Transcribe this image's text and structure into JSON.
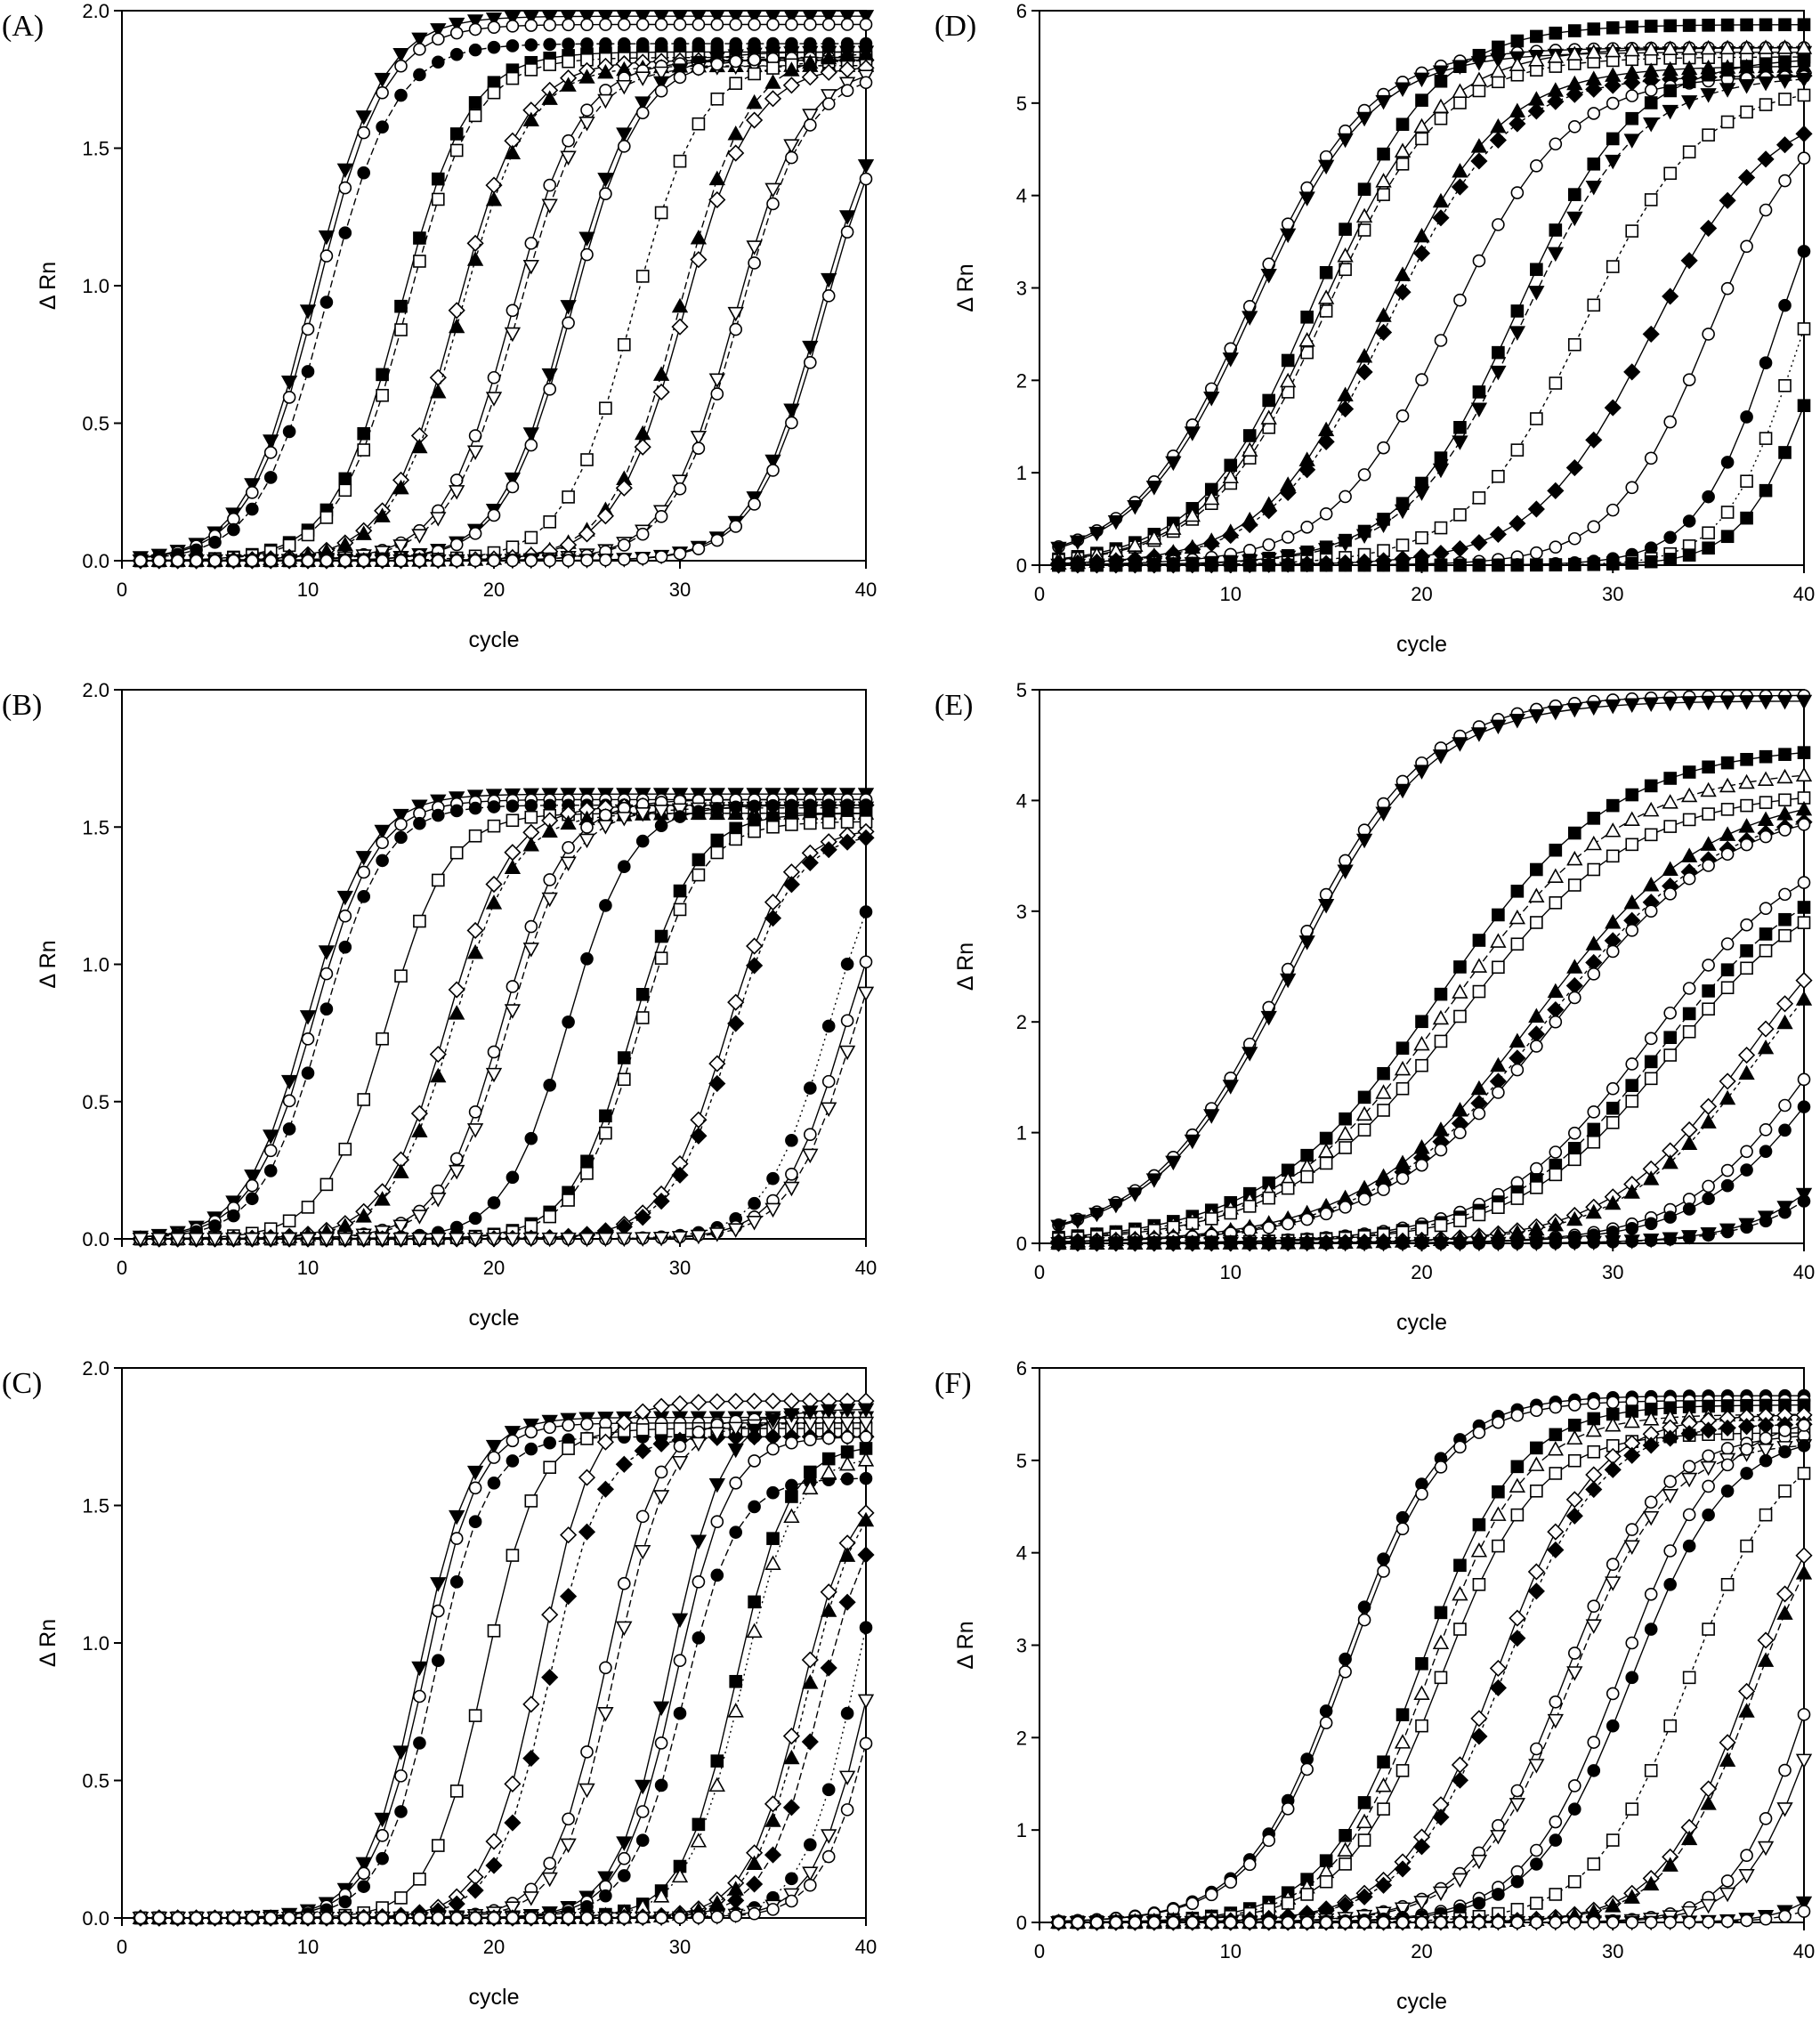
{
  "chart_data": [
    {
      "panel": "(A)",
      "type": "line",
      "xlabel": "cycle",
      "ylabel": "Δ Rn",
      "xlim": [
        0,
        40
      ],
      "ylim": [
        0,
        2.0
      ],
      "xticks": [
        0,
        10,
        20,
        30,
        40
      ],
      "yticks": [
        0.0,
        0.5,
        1.0,
        1.5,
        2.0
      ],
      "ytick_labels": [
        "0.0",
        "0.5",
        "1.0",
        "1.5",
        "2.0"
      ],
      "grid": false,
      "series": [
        {
          "marker": "triangle-down-filled",
          "dash": "",
          "ct": 10.3,
          "plateau": 1.98,
          "k": 0.55
        },
        {
          "marker": "circle-open",
          "dash": "",
          "ct": 10.5,
          "plateau": 1.95,
          "k": 0.55
        },
        {
          "marker": "circle-filled",
          "dash": "8 4",
          "ct": 11.0,
          "plateau": 1.88,
          "k": 0.55
        },
        {
          "marker": "square-filled",
          "dash": "",
          "ct": 15.0,
          "plateau": 1.85,
          "k": 0.55
        },
        {
          "marker": "square-open",
          "dash": "8 4",
          "ct": 15.3,
          "plateau": 1.83,
          "k": 0.55
        },
        {
          "marker": "diamond-open",
          "dash": "",
          "ct": 18.0,
          "plateau": 1.82,
          "k": 0.55
        },
        {
          "marker": "triangle-up-filled",
          "dash": "4 4",
          "ct": 18.2,
          "plateau": 1.8,
          "k": 0.55
        },
        {
          "marker": "circle-open",
          "dash": "",
          "ct": 21.0,
          "plateau": 1.82,
          "k": 0.55
        },
        {
          "marker": "triangle-down-open",
          "dash": "8 4",
          "ct": 21.3,
          "plateau": 1.8,
          "k": 0.55
        },
        {
          "marker": "triangle-down-filled",
          "dash": "",
          "ct": 24.0,
          "plateau": 1.85,
          "k": 0.55
        },
        {
          "marker": "circle-open",
          "dash": "",
          "ct": 24.2,
          "plateau": 1.83,
          "k": 0.55
        },
        {
          "marker": "square-open",
          "dash": "4 4",
          "ct": 27.5,
          "plateau": 1.82,
          "k": 0.55
        },
        {
          "marker": "triangle-up-filled",
          "dash": "8 4",
          "ct": 30.0,
          "plateau": 1.85,
          "k": 0.55
        },
        {
          "marker": "diamond-open",
          "dash": "",
          "ct": 30.2,
          "plateau": 1.8,
          "k": 0.55
        },
        {
          "marker": "triangle-down-open",
          "dash": "",
          "ct": 33.0,
          "plateau": 1.8,
          "k": 0.55
        },
        {
          "marker": "circle-open",
          "dash": "8 4",
          "ct": 33.2,
          "plateau": 1.78,
          "k": 0.55
        },
        {
          "marker": "triangle-down-filled",
          "dash": "",
          "ct": 37.5,
          "plateau": 1.8,
          "k": 0.55
        },
        {
          "marker": "circle-open",
          "dash": "",
          "ct": 37.7,
          "plateau": 1.78,
          "k": 0.55
        }
      ]
    },
    {
      "panel": "(B)",
      "type": "line",
      "xlabel": "cycle",
      "ylabel": "Δ Rn",
      "xlim": [
        0,
        40
      ],
      "ylim": [
        0,
        2.0
      ],
      "xticks": [
        0,
        10,
        20,
        30,
        40
      ],
      "yticks": [
        0.0,
        0.5,
        1.0,
        1.5,
        2.0
      ],
      "ytick_labels": [
        "0.0",
        "0.5",
        "1.0",
        "1.5",
        "2.0"
      ],
      "grid": false,
      "series": [
        {
          "marker": "triangle-down-filled",
          "dash": "",
          "ct": 10.0,
          "plateau": 1.62,
          "k": 0.6
        },
        {
          "marker": "circle-open",
          "dash": "",
          "ct": 10.3,
          "plateau": 1.6,
          "k": 0.6
        },
        {
          "marker": "circle-filled",
          "dash": "8 4",
          "ct": 10.8,
          "plateau": 1.58,
          "k": 0.6
        },
        {
          "marker": "square-open",
          "dash": "",
          "ct": 14.2,
          "plateau": 1.55,
          "k": 0.6
        },
        {
          "marker": "diamond-open",
          "dash": "",
          "ct": 17.5,
          "plateau": 1.58,
          "k": 0.6
        },
        {
          "marker": "triangle-up-filled",
          "dash": "4 4",
          "ct": 17.8,
          "plateau": 1.55,
          "k": 0.6
        },
        {
          "marker": "circle-open",
          "dash": "",
          "ct": 20.5,
          "plateau": 1.6,
          "k": 0.6
        },
        {
          "marker": "triangle-down-open",
          "dash": "8 4",
          "ct": 20.8,
          "plateau": 1.57,
          "k": 0.6
        },
        {
          "marker": "circle-filled",
          "dash": "",
          "ct": 24.0,
          "plateau": 1.58,
          "k": 0.6
        },
        {
          "marker": "square-filled",
          "dash": "",
          "ct": 27.5,
          "plateau": 1.55,
          "k": 0.6
        },
        {
          "marker": "square-open",
          "dash": "8 4",
          "ct": 27.8,
          "plateau": 1.52,
          "k": 0.6
        },
        {
          "marker": "diamond-open",
          "dash": "",
          "ct": 32.5,
          "plateau": 1.5,
          "k": 0.6
        },
        {
          "marker": "diamond-filled",
          "dash": "4 4",
          "ct": 32.8,
          "plateau": 1.48,
          "k": 0.6
        },
        {
          "marker": "circle-filled",
          "dash": "2 4",
          "ct": 38.0,
          "plateau": 1.55,
          "k": 0.6
        },
        {
          "marker": "circle-open",
          "dash": "",
          "ct": 38.8,
          "plateau": 1.5,
          "k": 0.6
        },
        {
          "marker": "triangle-down-open",
          "dash": "8 4",
          "ct": 39.2,
          "plateau": 1.45,
          "k": 0.6
        }
      ]
    },
    {
      "panel": "(C)",
      "type": "line",
      "xlabel": "cycle",
      "ylabel": "Δ Rn",
      "xlim": [
        0,
        40
      ],
      "ylim": [
        0,
        2.0
      ],
      "xticks": [
        0,
        10,
        20,
        30,
        40
      ],
      "yticks": [
        0.0,
        0.5,
        1.0,
        1.5,
        2.0
      ],
      "ytick_labels": [
        "0.0",
        "0.5",
        "1.0",
        "1.5",
        "2.0"
      ],
      "grid": false,
      "series": [
        {
          "marker": "triangle-down-filled",
          "dash": "",
          "ct": 16.0,
          "plateau": 1.82,
          "k": 0.7
        },
        {
          "marker": "circle-open",
          "dash": "",
          "ct": 16.3,
          "plateau": 1.8,
          "k": 0.7
        },
        {
          "marker": "circle-filled",
          "dash": "8 4",
          "ct": 16.8,
          "plateau": 1.75,
          "k": 0.7
        },
        {
          "marker": "square-open",
          "dash": "",
          "ct": 19.5,
          "plateau": 1.78,
          "k": 0.7
        },
        {
          "marker": "diamond-open",
          "dash": "",
          "ct": 22.5,
          "plateau": 1.88,
          "k": 0.7
        },
        {
          "marker": "diamond-filled",
          "dash": "4 4",
          "ct": 23.0,
          "plateau": 1.75,
          "k": 0.7
        },
        {
          "marker": "circle-open",
          "dash": "",
          "ct": 26.0,
          "plateau": 1.82,
          "k": 0.7
        },
        {
          "marker": "triangle-down-open",
          "dash": "8 4",
          "ct": 26.5,
          "plateau": 1.8,
          "k": 0.7
        },
        {
          "marker": "triangle-down-filled",
          "dash": "",
          "ct": 29.5,
          "plateau": 1.85,
          "k": 0.7
        },
        {
          "marker": "circle-open",
          "dash": "",
          "ct": 29.8,
          "plateau": 1.75,
          "k": 0.7
        },
        {
          "marker": "circle-filled",
          "dash": "8 4",
          "ct": 30.2,
          "plateau": 1.6,
          "k": 0.7
        },
        {
          "marker": "square-filled",
          "dash": "",
          "ct": 33.0,
          "plateau": 1.72,
          "k": 0.7
        },
        {
          "marker": "triangle-up-open",
          "dash": "2 4",
          "ct": 33.3,
          "plateau": 1.68,
          "k": 0.7
        },
        {
          "marker": "diamond-open",
          "dash": "",
          "ct": 36.5,
          "plateau": 1.6,
          "k": 0.7
        },
        {
          "marker": "triangle-up-filled",
          "dash": "4 4",
          "ct": 36.8,
          "plateau": 1.6,
          "k": 0.7
        },
        {
          "marker": "diamond-filled",
          "dash": "8 4",
          "ct": 37.5,
          "plateau": 1.55,
          "k": 0.7
        },
        {
          "marker": "circle-filled",
          "dash": "2 4",
          "ct": 39.5,
          "plateau": 1.8,
          "k": 0.7
        },
        {
          "marker": "triangle-down-open",
          "dash": "",
          "ct": 40.2,
          "plateau": 1.7,
          "k": 0.7
        },
        {
          "marker": "circle-open",
          "dash": "8 4",
          "ct": 40.6,
          "plateau": 1.6,
          "k": 0.7
        }
      ]
    },
    {
      "panel": "(D)",
      "type": "line",
      "xlabel": "cycle",
      "ylabel": "Δ Rn",
      "xlim": [
        0,
        40
      ],
      "ylim": [
        0,
        6
      ],
      "xticks": [
        0,
        10,
        20,
        30,
        40
      ],
      "yticks": [
        0,
        1,
        2,
        3,
        4,
        5,
        6
      ],
      "ytick_labels": [
        "0",
        "1",
        "2",
        "3",
        "4",
        "5",
        "6"
      ],
      "grid": false,
      "series": [
        {
          "marker": "circle-open",
          "dash": "",
          "ct": 11.0,
          "plateau": 5.6,
          "k": 0.33
        },
        {
          "marker": "triangle-down-filled",
          "dash": "",
          "ct": 11.2,
          "plateau": 5.55,
          "k": 0.33
        },
        {
          "marker": "square-filled",
          "dash": "",
          "ct": 14.5,
          "plateau": 5.85,
          "k": 0.33
        },
        {
          "marker": "square-open",
          "dash": "8 4",
          "ct": 15.0,
          "plateau": 5.5,
          "k": 0.33
        },
        {
          "marker": "triangle-up-open",
          "dash": "",
          "ct": 14.8,
          "plateau": 5.6,
          "k": 0.33
        },
        {
          "marker": "triangle-up-filled",
          "dash": "",
          "ct": 18.0,
          "plateau": 5.4,
          "k": 0.33
        },
        {
          "marker": "diamond-filled",
          "dash": "4 4",
          "ct": 18.3,
          "plateau": 5.3,
          "k": 0.33
        },
        {
          "marker": "circle-open",
          "dash": "",
          "ct": 21.5,
          "plateau": 5.3,
          "k": 0.33
        },
        {
          "marker": "square-filled",
          "dash": "",
          "ct": 25.0,
          "plateau": 5.5,
          "k": 0.33
        },
        {
          "marker": "triangle-down-filled",
          "dash": "8 4",
          "ct": 25.3,
          "plateau": 5.3,
          "k": 0.33
        },
        {
          "marker": "square-open",
          "dash": "4 4",
          "ct": 28.5,
          "plateau": 5.2,
          "k": 0.33
        },
        {
          "marker": "diamond-filled",
          "dash": "",
          "ct": 32.0,
          "plateau": 5.0,
          "k": 0.33
        },
        {
          "marker": "circle-open",
          "dash": "",
          "ct": 35.0,
          "plateau": 5.0,
          "k": 0.4
        },
        {
          "marker": "circle-filled",
          "dash": "",
          "ct": 38.5,
          "plateau": 5.0,
          "k": 0.5
        },
        {
          "marker": "square-open",
          "dash": "2 4",
          "ct": 39.5,
          "plateau": 4.5,
          "k": 0.55
        },
        {
          "marker": "square-filled",
          "dash": "",
          "ct": 40.5,
          "plateau": 4.0,
          "k": 0.55
        }
      ]
    },
    {
      "panel": "(E)",
      "type": "line",
      "xlabel": "cycle",
      "ylabel": "Δ Rn",
      "xlim": [
        0,
        40
      ],
      "ylim": [
        0,
        5
      ],
      "xticks": [
        0,
        10,
        20,
        30,
        40
      ],
      "yticks": [
        0,
        1,
        2,
        3,
        4,
        5
      ],
      "ytick_labels": [
        "0",
        "1",
        "2",
        "3",
        "4",
        "5"
      ],
      "grid": false,
      "series": [
        {
          "marker": "circle-open",
          "dash": "",
          "ct": 13.0,
          "plateau": 4.95,
          "k": 0.28
        },
        {
          "marker": "triangle-down-filled",
          "dash": "",
          "ct": 13.2,
          "plateau": 4.9,
          "k": 0.28
        },
        {
          "marker": "square-filled",
          "dash": "",
          "ct": 21.0,
          "plateau": 4.5,
          "k": 0.22
        },
        {
          "marker": "triangle-up-open",
          "dash": "8 4",
          "ct": 21.5,
          "plateau": 4.3,
          "k": 0.22
        },
        {
          "marker": "square-open",
          "dash": "",
          "ct": 22.0,
          "plateau": 4.1,
          "k": 0.22
        },
        {
          "marker": "triangle-up-filled",
          "dash": "",
          "ct": 26.0,
          "plateau": 4.1,
          "k": 0.22
        },
        {
          "marker": "diamond-filled",
          "dash": "4 4",
          "ct": 26.5,
          "plateau": 4.0,
          "k": 0.22
        },
        {
          "marker": "circle-open",
          "dash": "",
          "ct": 27.0,
          "plateau": 4.0,
          "k": 0.22
        },
        {
          "marker": "circle-open",
          "dash": "",
          "ct": 32.0,
          "plateau": 3.7,
          "k": 0.25
        },
        {
          "marker": "square-filled",
          "dash": "8 4",
          "ct": 32.5,
          "plateau": 3.5,
          "k": 0.25
        },
        {
          "marker": "square-open",
          "dash": "",
          "ct": 33.0,
          "plateau": 3.4,
          "k": 0.25
        },
        {
          "marker": "diamond-open",
          "dash": "",
          "ct": 37.0,
          "plateau": 3.4,
          "k": 0.28
        },
        {
          "marker": "triangle-up-filled",
          "dash": "4 4",
          "ct": 37.5,
          "plateau": 3.3,
          "k": 0.28
        },
        {
          "marker": "circle-open",
          "dash": "",
          "ct": 40.5,
          "plateau": 3.2,
          "k": 0.3
        },
        {
          "marker": "circle-filled",
          "dash": "",
          "ct": 41.2,
          "plateau": 3.0,
          "k": 0.3
        },
        {
          "marker": "triangle-down-filled",
          "dash": "",
          "ct": 45.0,
          "plateau": 3.0,
          "k": 0.35
        },
        {
          "marker": "circle-filled",
          "dash": "8 4",
          "ct": 45.5,
          "plateau": 3.0,
          "k": 0.35
        }
      ]
    },
    {
      "panel": "(F)",
      "type": "line",
      "xlabel": "cycle",
      "ylabel": "Δ Rn",
      "xlim": [
        0,
        40
      ],
      "ylim": [
        0,
        6
      ],
      "xticks": [
        0,
        10,
        20,
        30,
        40
      ],
      "yticks": [
        0,
        1,
        2,
        3,
        4,
        5,
        6
      ],
      "ytick_labels": [
        "0",
        "1",
        "2",
        "3",
        "4",
        "5",
        "6"
      ],
      "grid": false,
      "series": [
        {
          "marker": "circle-filled",
          "dash": "",
          "ct": 16.0,
          "plateau": 5.7,
          "k": 0.4
        },
        {
          "marker": "circle-open",
          "dash": "",
          "ct": 16.2,
          "plateau": 5.65,
          "k": 0.4
        },
        {
          "marker": "square-filled",
          "dash": "",
          "ct": 20.0,
          "plateau": 5.6,
          "k": 0.4
        },
        {
          "marker": "triangle-up-open",
          "dash": "8 4",
          "ct": 20.5,
          "plateau": 5.5,
          "k": 0.4
        },
        {
          "marker": "square-open",
          "dash": "",
          "ct": 21.0,
          "plateau": 5.3,
          "k": 0.4
        },
        {
          "marker": "diamond-open",
          "dash": "",
          "ct": 24.0,
          "plateau": 5.5,
          "k": 0.4
        },
        {
          "marker": "diamond-filled",
          "dash": "4 4",
          "ct": 24.3,
          "plateau": 5.4,
          "k": 0.4
        },
        {
          "marker": "circle-open",
          "dash": "",
          "ct": 27.5,
          "plateau": 5.3,
          "k": 0.4
        },
        {
          "marker": "triangle-down-open",
          "dash": "8 4",
          "ct": 27.8,
          "plateau": 5.2,
          "k": 0.4
        },
        {
          "marker": "circle-open",
          "dash": "",
          "ct": 30.5,
          "plateau": 5.5,
          "k": 0.4
        },
        {
          "marker": "circle-filled",
          "dash": "",
          "ct": 31.0,
          "plateau": 5.3,
          "k": 0.4
        },
        {
          "marker": "square-open",
          "dash": "4 4",
          "ct": 34.0,
          "plateau": 5.3,
          "k": 0.4
        },
        {
          "marker": "diamond-open",
          "dash": "",
          "ct": 37.0,
          "plateau": 5.0,
          "k": 0.45
        },
        {
          "marker": "triangle-up-filled",
          "dash": "8 4",
          "ct": 37.3,
          "plateau": 4.9,
          "k": 0.45
        },
        {
          "marker": "circle-open",
          "dash": "",
          "ct": 40.0,
          "plateau": 4.5,
          "k": 0.55
        },
        {
          "marker": "triangle-down-open",
          "dash": "",
          "ct": 40.6,
          "plateau": 4.2,
          "k": 0.55
        },
        {
          "marker": "triangle-down-filled",
          "dash": "",
          "ct": 45.0,
          "plateau": 4.5,
          "k": 0.6
        },
        {
          "marker": "circle-open",
          "dash": "8 4",
          "ct": 46.0,
          "plateau": 4.5,
          "k": 0.6
        }
      ]
    }
  ]
}
